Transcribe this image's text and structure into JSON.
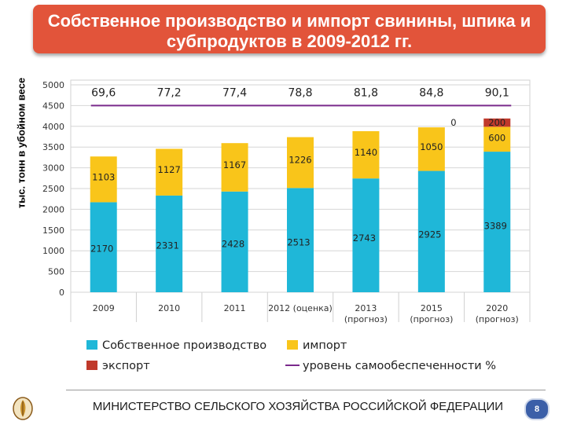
{
  "title": "Собственное производство и импорт свинины, шпика и субпродуктов в 2009-2012 гг.",
  "y_axis_label": "тыс. тонн в убойном весе",
  "footer": "МИНИСТЕРСТВО СЕЛЬСКОГО ХОЗЯЙСТВА РОССИЙСКОЙ ФЕДЕРАЦИИ",
  "page_number": "8",
  "colors": {
    "production": "#1fb7d8",
    "import": "#f9c51a",
    "export": "#c0392b",
    "line": "#7a2a8c",
    "title_bg": "#e2543a"
  },
  "chart_data": {
    "type": "bar",
    "stacked": true,
    "categories": [
      [
        "2009"
      ],
      [
        "2010"
      ],
      [
        "2011"
      ],
      [
        "2012 (оценка)"
      ],
      [
        "2013",
        "(прогноз)"
      ],
      [
        "2015",
        "(прогноз)"
      ],
      [
        "2020",
        "(прогноз)"
      ]
    ],
    "series": [
      {
        "name": "Собственное производство",
        "values": [
          2170,
          2331,
          2428,
          2513,
          2743,
          2925,
          3389
        ],
        "labels": [
          "2170",
          "2331",
          "2428",
          "2513",
          "2743",
          "2925",
          "3389"
        ]
      },
      {
        "name": "импорт",
        "values": [
          1103,
          1127,
          1167,
          1226,
          1140,
          1050,
          600
        ],
        "labels": [
          "1103",
          "1127",
          "1167",
          "1226",
          "1140",
          "1050",
          "600"
        ]
      },
      {
        "name": "экспорт",
        "values": [
          0,
          0,
          0,
          0,
          0,
          0,
          200
        ],
        "labels": [
          "",
          "",
          "",
          "",
          "",
          "0",
          "200"
        ]
      }
    ],
    "line": {
      "name": "уровень самообеспеченности %",
      "values": [
        69.6,
        77.2,
        77.4,
        78.8,
        81.8,
        84.8,
        90.1
      ],
      "labels": [
        "69,6",
        "77,2",
        "77,4",
        "78,8",
        "81,8",
        "84,8",
        "90,1"
      ],
      "plotted_at": 4500
    },
    "yticks": [
      0,
      500,
      1000,
      1500,
      2000,
      2500,
      3000,
      3500,
      4000,
      4500,
      5000
    ],
    "ylim": [
      0,
      5000
    ],
    "grid": true,
    "legend_position": "bottom"
  }
}
